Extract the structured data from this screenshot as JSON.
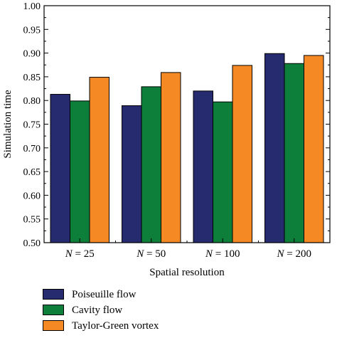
{
  "chart_data": {
    "type": "bar",
    "categories": [
      "N = 25",
      "N = 50",
      "N = 100",
      "N = 200"
    ],
    "category_parts": [
      {
        "var": "N",
        "rest": " = 25"
      },
      {
        "var": "N",
        "rest": " = 50"
      },
      {
        "var": "N",
        "rest": " = 100"
      },
      {
        "var": "N",
        "rest": " = 200"
      }
    ],
    "series": [
      {
        "name": "Poiseuille flow",
        "color": "#262a6e",
        "values": [
          0.813,
          0.789,
          0.82,
          0.899
        ]
      },
      {
        "name": "Cavity flow",
        "color": "#0e7e3b",
        "values": [
          0.799,
          0.829,
          0.797,
          0.878
        ]
      },
      {
        "name": "Taylor-Green vortex",
        "color": "#f58a25",
        "values": [
          0.849,
          0.859,
          0.874,
          0.895
        ]
      }
    ],
    "xlabel": "Spatial resolution",
    "ylabel": "Simulation time",
    "ylim": [
      0.5,
      1.0
    ],
    "yticks": [
      "0.50",
      "0.55",
      "0.60",
      "0.65",
      "0.70",
      "0.75",
      "0.80",
      "0.85",
      "0.90",
      "0.95",
      "1.00"
    ],
    "grid": false,
    "legend_position": "bottom-left, outside plot"
  }
}
